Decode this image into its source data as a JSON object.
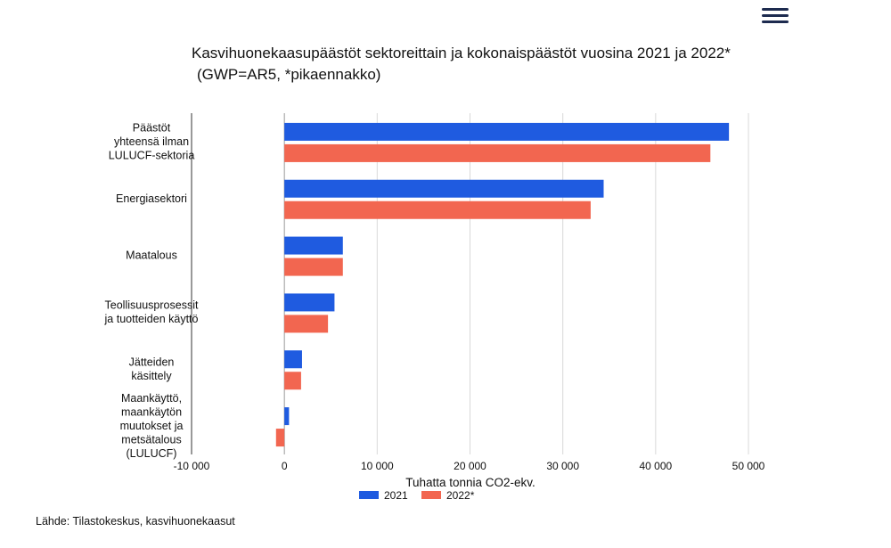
{
  "header": {
    "menu_icon": "hamburger-menu-icon"
  },
  "title": {
    "line1": "Kasvihuonekaasupäästöt sektoreittain ja kokonaispäästöt vuosina 2021 ja 2022*",
    "line2": "(GWP=AR5, *pikaennakko)"
  },
  "chart_data": {
    "type": "bar",
    "orientation": "horizontal",
    "categories": [
      [
        "Päästöt",
        "yhteensä ilman",
        "LULUCF-sektoria"
      ],
      [
        "Energiasektori"
      ],
      [
        "Maatalous"
      ],
      [
        "Teollisuusprosessit",
        "ja tuotteiden käyttö"
      ],
      [
        "Jätteiden",
        "käsittely"
      ],
      [
        "Maankäyttö,",
        "maankäytön",
        "muutokset ja",
        "metsätalous",
        "(LULUCF)"
      ]
    ],
    "series": [
      {
        "name": "2021",
        "color": "#1f5be0",
        "values": [
          47900,
          34400,
          6300,
          5400,
          1900,
          500
        ]
      },
      {
        "name": "2022*",
        "color": "#f26650",
        "values": [
          45900,
          33000,
          6300,
          4700,
          1800,
          -900
        ]
      }
    ],
    "xlim": [
      -10000,
      50000
    ],
    "xticks": [
      -10000,
      0,
      10000,
      20000,
      30000,
      40000,
      50000
    ],
    "xtick_labels": [
      "-10 000",
      "0",
      "10 000",
      "20 000",
      "30 000",
      "40 000",
      "50 000"
    ],
    "xlabel": "Tuhatta tonnia CO2-ekv.",
    "grid": "vertical",
    "legend_position": "bottom"
  },
  "source": "Lähde: Tilastokeskus, kasvihuonekaasut"
}
